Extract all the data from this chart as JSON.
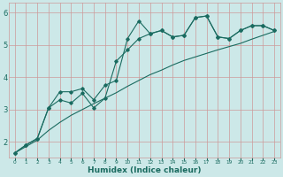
{
  "xlabel": "Humidex (Indice chaleur)",
  "bg_color": "#cce8e8",
  "grid_color": "#cc9999",
  "line_color": "#1a6b60",
  "x_values": [
    0,
    1,
    2,
    3,
    4,
    5,
    6,
    7,
    8,
    9,
    10,
    11,
    12,
    13,
    14,
    15,
    16,
    17,
    18,
    19,
    20,
    21,
    22,
    23
  ],
  "line1": [
    1.65,
    1.9,
    2.1,
    3.05,
    3.55,
    3.55,
    3.65,
    3.3,
    3.75,
    3.9,
    5.2,
    5.75,
    5.35,
    5.45,
    5.25,
    5.3,
    5.85,
    5.9,
    5.25,
    5.2,
    5.45,
    5.6,
    5.6,
    5.45
  ],
  "line2": [
    1.65,
    1.9,
    2.1,
    3.05,
    3.3,
    3.2,
    3.5,
    3.05,
    3.35,
    4.5,
    4.85,
    5.2,
    5.35,
    5.45,
    5.25,
    5.3,
    5.85,
    5.9,
    5.25,
    5.2,
    5.45,
    5.6,
    5.6,
    5.45
  ],
  "line3": [
    1.65,
    1.85,
    2.05,
    2.35,
    2.6,
    2.82,
    3.0,
    3.18,
    3.35,
    3.52,
    3.72,
    3.9,
    4.08,
    4.22,
    4.38,
    4.52,
    4.63,
    4.74,
    4.85,
    4.95,
    5.05,
    5.18,
    5.3,
    5.42
  ],
  "ylim": [
    1.5,
    6.3
  ],
  "yticks": [
    2,
    3,
    4,
    5,
    6
  ],
  "xlim": [
    -0.5,
    23.5
  ]
}
